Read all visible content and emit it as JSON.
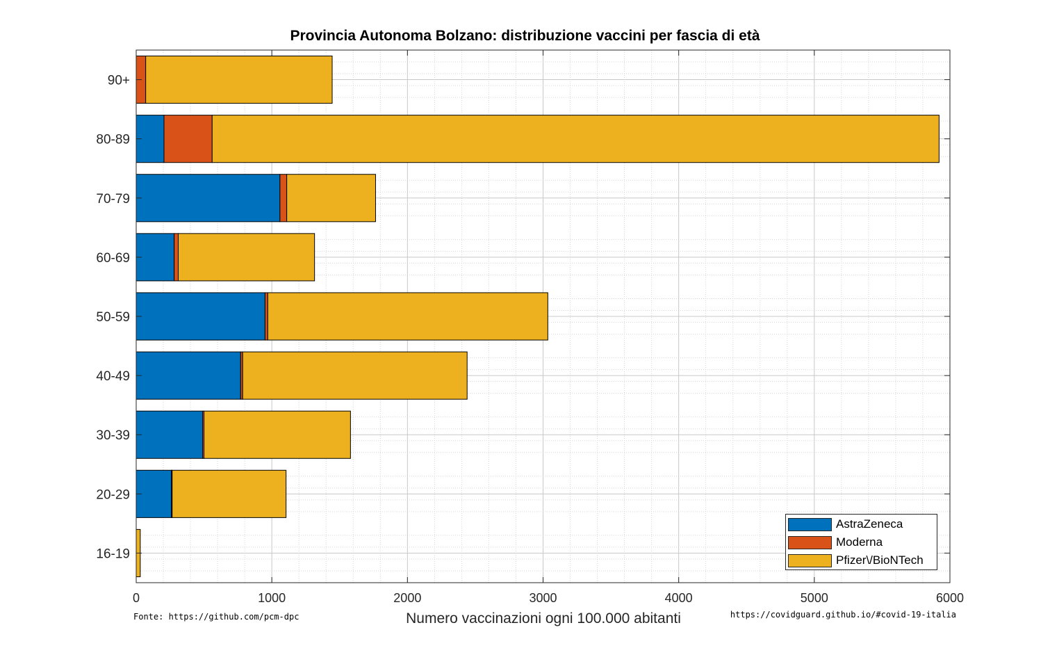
{
  "chart_data": {
    "type": "bar",
    "orientation": "horizontal",
    "stacked": true,
    "title": "Provincia Autonoma Bolzano: distribuzione vaccini per fascia di età",
    "xlabel": "Numero vaccinazioni ogni 100.000 abitanti",
    "xlim": [
      0,
      6000
    ],
    "xticks": [
      "0",
      "1000",
      "2000",
      "3000",
      "4000",
      "5000",
      "6000"
    ],
    "categories": [
      "16-19",
      "20-29",
      "30-39",
      "40-49",
      "50-59",
      "60-69",
      "70-79",
      "80-89",
      "90+"
    ],
    "series": [
      {
        "name": "AstraZeneca",
        "color": "#0072BD",
        "values": [
          0,
          260,
          490,
          770,
          950,
          280,
          1060,
          205,
          0
        ]
      },
      {
        "name": "Moderna",
        "color": "#D95319",
        "values": [
          0,
          5,
          10,
          15,
          20,
          30,
          50,
          355,
          70
        ]
      },
      {
        "name": "Pfizer\\/BioNTech",
        "color": "#EDB120",
        "values": [
          30,
          840,
          1080,
          1655,
          2065,
          1005,
          655,
          5360,
          1375
        ]
      }
    ],
    "grid": true,
    "legend_position": "bottom-right"
  },
  "footer": {
    "source_left": "Fonte: https://github.com/pcm-dpc",
    "source_right": "https://covidguard.github.io/#covid-19-italia"
  }
}
